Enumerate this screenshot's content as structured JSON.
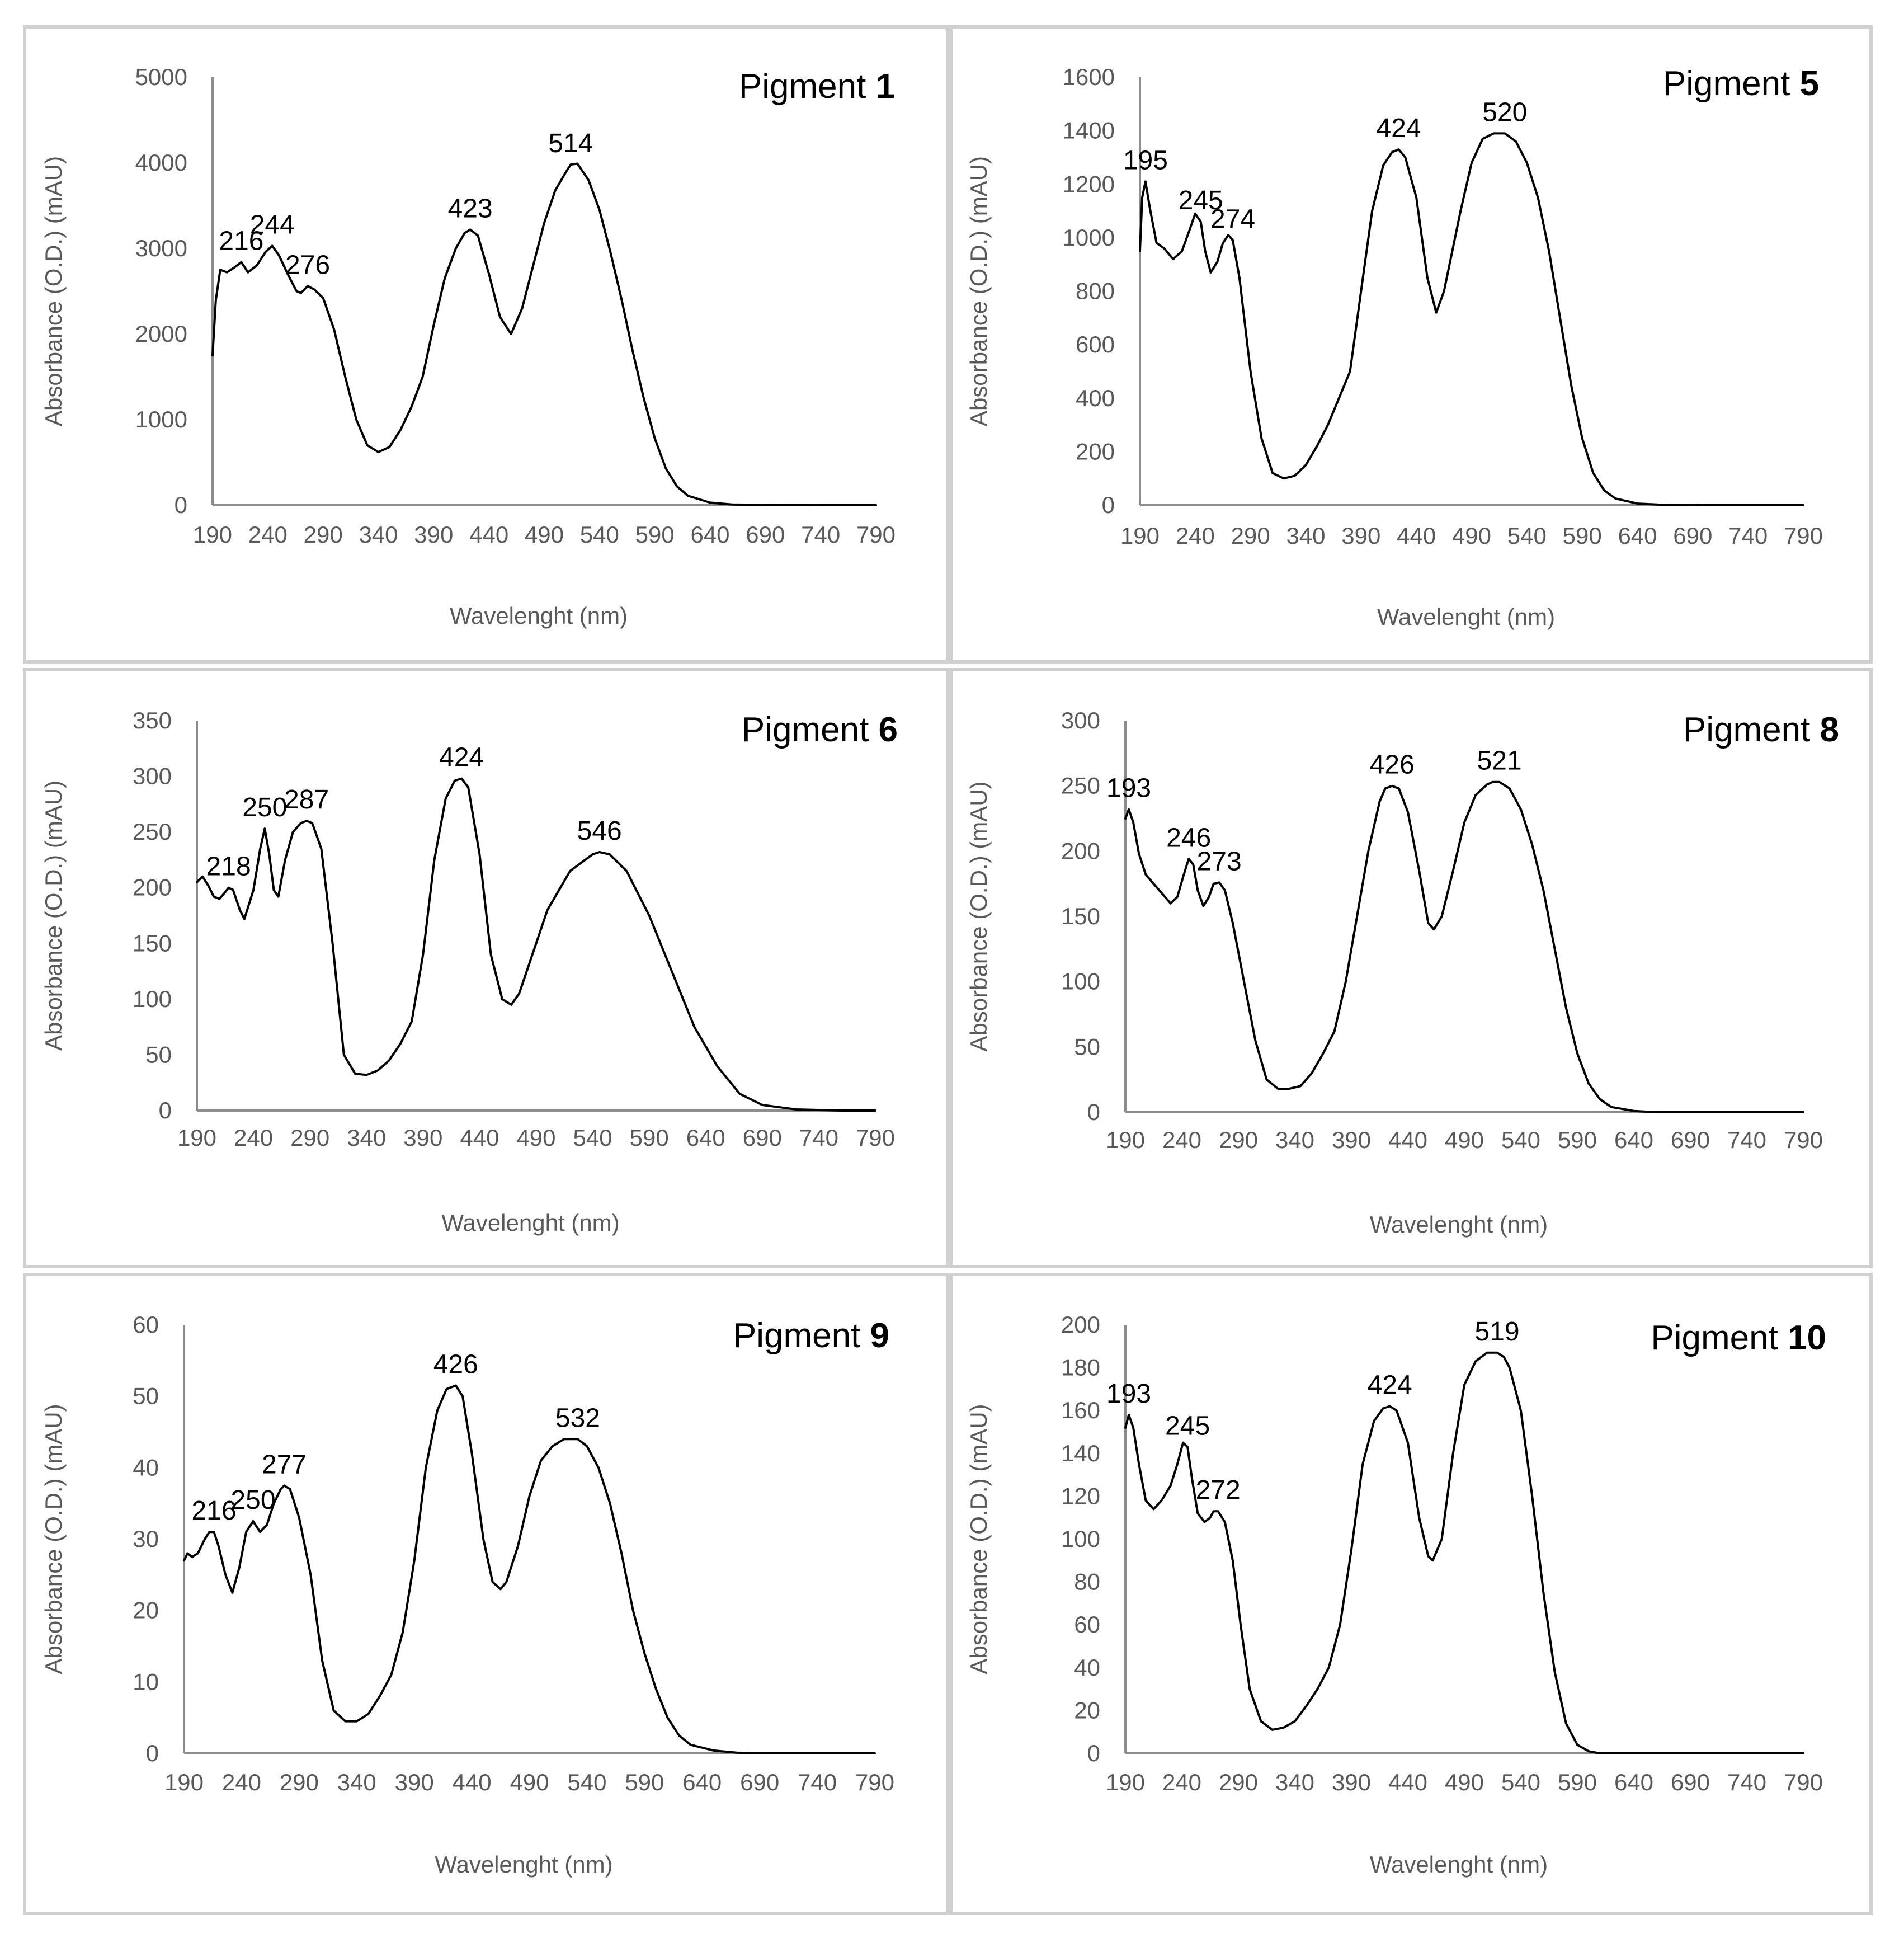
{
  "colors": {
    "line": "#000000",
    "axis": "#8c8c8c",
    "text": "#595959",
    "border": "#d0d0d0"
  },
  "chart_data": [
    {
      "type": "line",
      "title": "Pigment 1",
      "title_prefix": "Pigment ",
      "title_number": "1",
      "xlabel": "Wavelenght (nm)",
      "ylabel": "Absorbance (O.D.) (mAU)",
      "x_ticks": [
        190,
        240,
        290,
        340,
        390,
        440,
        490,
        540,
        590,
        640,
        690,
        740,
        790
      ],
      "y_ticks": [
        0,
        1000,
        2000,
        3000,
        4000,
        5000
      ],
      "xlim": [
        190,
        790
      ],
      "ylim": [
        0,
        5000
      ],
      "grid": false,
      "x": [
        190,
        193,
        197,
        203,
        210,
        216,
        222,
        230,
        238,
        244,
        250,
        258,
        266,
        270,
        276,
        282,
        290,
        300,
        310,
        320,
        330,
        340,
        350,
        360,
        370,
        380,
        390,
        400,
        410,
        418,
        423,
        430,
        440,
        450,
        460,
        470,
        480,
        490,
        500,
        510,
        514,
        520,
        530,
        540,
        550,
        560,
        570,
        580,
        590,
        600,
        610,
        620,
        640,
        660,
        700,
        740,
        790
      ],
      "y": [
        1750,
        2400,
        2750,
        2720,
        2780,
        2840,
        2720,
        2800,
        2960,
        3030,
        2920,
        2700,
        2500,
        2480,
        2560,
        2520,
        2420,
        2050,
        1500,
        1000,
        700,
        620,
        680,
        880,
        1150,
        1500,
        2100,
        2650,
        3000,
        3180,
        3220,
        3150,
        2700,
        2200,
        2000,
        2300,
        2800,
        3300,
        3680,
        3900,
        3980,
        3990,
        3800,
        3450,
        2950,
        2400,
        1800,
        1250,
        780,
        430,
        220,
        110,
        30,
        8,
        2,
        0,
        0
      ],
      "peaks": [
        {
          "x": 216,
          "label": "216"
        },
        {
          "x": 244,
          "label": "244"
        },
        {
          "x": 276,
          "label": "276"
        },
        {
          "x": 423,
          "label": "423"
        },
        {
          "x": 514,
          "label": "514"
        }
      ]
    },
    {
      "type": "line",
      "title": "Pigment 5",
      "title_prefix": "Pigment ",
      "title_number": "5",
      "xlabel": "Wavelenght (nm)",
      "ylabel": "Absorbance (O.D.) (mAU)",
      "x_ticks": [
        190,
        240,
        290,
        340,
        390,
        440,
        490,
        540,
        590,
        640,
        690,
        740,
        790
      ],
      "y_ticks": [
        0,
        200,
        400,
        600,
        800,
        1000,
        1200,
        1400,
        1600
      ],
      "xlim": [
        190,
        790
      ],
      "ylim": [
        0,
        1600
      ],
      "grid": false,
      "x": [
        190,
        192,
        195,
        199,
        205,
        212,
        220,
        228,
        235,
        240,
        245,
        249,
        254,
        260,
        265,
        270,
        274,
        280,
        290,
        300,
        310,
        320,
        330,
        340,
        350,
        360,
        370,
        380,
        390,
        400,
        410,
        418,
        424,
        430,
        440,
        450,
        458,
        465,
        470,
        480,
        490,
        500,
        510,
        520,
        530,
        540,
        550,
        560,
        570,
        580,
        590,
        600,
        610,
        620,
        640,
        660,
        700,
        740,
        790
      ],
      "y": [
        950,
        1150,
        1210,
        1110,
        980,
        960,
        920,
        950,
        1030,
        1090,
        1060,
        950,
        870,
        910,
        980,
        1010,
        990,
        850,
        500,
        250,
        120,
        100,
        110,
        150,
        220,
        300,
        400,
        500,
        800,
        1100,
        1270,
        1320,
        1330,
        1300,
        1150,
        850,
        720,
        800,
        900,
        1100,
        1280,
        1370,
        1390,
        1390,
        1360,
        1280,
        1150,
        950,
        700,
        450,
        250,
        120,
        55,
        25,
        6,
        2,
        0,
        0,
        0
      ],
      "peaks": [
        {
          "x": 195,
          "label": "195"
        },
        {
          "x": 245,
          "label": "245"
        },
        {
          "x": 274,
          "label": "274"
        },
        {
          "x": 424,
          "label": "424"
        },
        {
          "x": 520,
          "label": "520"
        }
      ]
    },
    {
      "type": "line",
      "title": "Pigment 6",
      "title_prefix": "Pigment ",
      "title_number": "6",
      "xlabel": "Wavelenght (nm)",
      "ylabel": "Absorbance (O.D.) (mAU)",
      "x_ticks": [
        190,
        240,
        290,
        340,
        390,
        440,
        490,
        540,
        590,
        640,
        690,
        740,
        790
      ],
      "y_ticks": [
        0,
        50,
        100,
        150,
        200,
        250,
        300,
        350
      ],
      "xlim": [
        190,
        790
      ],
      "ylim": [
        0,
        350
      ],
      "grid": false,
      "x": [
        190,
        195,
        200,
        205,
        210,
        215,
        218,
        222,
        228,
        232,
        240,
        246,
        250,
        254,
        258,
        262,
        268,
        275,
        282,
        287,
        292,
        300,
        310,
        320,
        330,
        340,
        350,
        360,
        370,
        380,
        390,
        400,
        410,
        418,
        424,
        430,
        440,
        450,
        460,
        468,
        475,
        485,
        500,
        520,
        540,
        546,
        555,
        570,
        590,
        610,
        630,
        650,
        670,
        690,
        720,
        760,
        790
      ],
      "y": [
        205,
        210,
        202,
        192,
        190,
        196,
        200,
        198,
        180,
        172,
        198,
        235,
        253,
        230,
        198,
        192,
        225,
        250,
        258,
        260,
        258,
        235,
        150,
        50,
        33,
        32,
        36,
        45,
        60,
        80,
        140,
        225,
        280,
        296,
        298,
        290,
        230,
        140,
        100,
        95,
        105,
        135,
        180,
        215,
        230,
        232,
        230,
        215,
        175,
        125,
        75,
        40,
        15,
        5,
        1,
        0,
        0
      ],
      "peaks": [
        {
          "x": 218,
          "label": "218"
        },
        {
          "x": 250,
          "label": "250"
        },
        {
          "x": 287,
          "label": "287"
        },
        {
          "x": 424,
          "label": "424"
        },
        {
          "x": 546,
          "label": "546"
        }
      ]
    },
    {
      "type": "line",
      "title": "Pigment 8",
      "title_prefix": "Pigment ",
      "title_number": "8",
      "xlabel": "Wavelenght (nm)",
      "ylabel": "Absorbance (O.D.) (mAU)",
      "x_ticks": [
        190,
        240,
        290,
        340,
        390,
        440,
        490,
        540,
        590,
        640,
        690,
        740,
        790
      ],
      "y_ticks": [
        0,
        50,
        100,
        150,
        200,
        250,
        300
      ],
      "xlim": [
        190,
        790
      ],
      "ylim": [
        0,
        300
      ],
      "grid": false,
      "x": [
        190,
        193,
        197,
        202,
        208,
        215,
        222,
        230,
        236,
        241,
        246,
        250,
        254,
        259,
        264,
        268,
        273,
        278,
        285,
        295,
        305,
        315,
        325,
        335,
        345,
        355,
        365,
        375,
        385,
        395,
        405,
        415,
        420,
        426,
        432,
        440,
        450,
        458,
        463,
        470,
        480,
        490,
        500,
        510,
        515,
        521,
        530,
        540,
        550,
        560,
        570,
        580,
        590,
        600,
        610,
        620,
        640,
        660,
        700,
        740,
        790
      ],
      "y": [
        225,
        232,
        222,
        198,
        182,
        175,
        168,
        160,
        165,
        180,
        194,
        190,
        170,
        158,
        165,
        175,
        176,
        170,
        145,
        100,
        55,
        25,
        18,
        18,
        20,
        30,
        45,
        62,
        100,
        150,
        200,
        238,
        248,
        250,
        248,
        230,
        185,
        145,
        140,
        150,
        185,
        222,
        243,
        251,
        253,
        253,
        248,
        232,
        205,
        170,
        125,
        80,
        45,
        22,
        10,
        4,
        1,
        0,
        0,
        0,
        0
      ],
      "peaks": [
        {
          "x": 193,
          "label": "193"
        },
        {
          "x": 246,
          "label": "246"
        },
        {
          "x": 273,
          "label": "273"
        },
        {
          "x": 426,
          "label": "426"
        },
        {
          "x": 521,
          "label": "521"
        }
      ]
    },
    {
      "type": "line",
      "title": "Pigment 9",
      "title_prefix": "Pigment ",
      "title_number": "9",
      "xlabel": "Wavelenght (nm)",
      "ylabel": "Absorbance (O.D.) (mAU)",
      "x_ticks": [
        190,
        240,
        290,
        340,
        390,
        440,
        490,
        540,
        590,
        640,
        690,
        740,
        790
      ],
      "y_ticks": [
        0,
        10,
        20,
        30,
        40,
        50,
        60
      ],
      "xlim": [
        190,
        790
      ],
      "ylim": [
        0,
        60
      ],
      "grid": false,
      "x": [
        190,
        193,
        197,
        202,
        208,
        212,
        216,
        220,
        226,
        232,
        238,
        244,
        250,
        256,
        262,
        268,
        274,
        277,
        282,
        290,
        300,
        310,
        320,
        330,
        340,
        350,
        360,
        370,
        380,
        390,
        400,
        410,
        418,
        426,
        432,
        440,
        450,
        458,
        465,
        470,
        480,
        490,
        500,
        510,
        520,
        532,
        540,
        550,
        560,
        570,
        580,
        590,
        600,
        610,
        620,
        630,
        650,
        670,
        690,
        720,
        760,
        790
      ],
      "y": [
        27,
        28,
        27.5,
        28,
        30,
        31,
        31,
        29,
        25,
        22.5,
        26,
        31,
        32.5,
        31,
        32,
        35,
        37,
        37.5,
        37,
        33,
        25,
        13,
        6,
        4.5,
        4.5,
        5.5,
        8,
        11,
        17,
        27,
        40,
        48,
        51,
        51.5,
        50,
        42,
        30,
        24,
        23,
        24,
        29,
        36,
        41,
        43,
        44,
        44,
        43,
        40,
        35,
        28,
        20,
        14,
        9,
        5,
        2.5,
        1.2,
        0.4,
        0.1,
        0,
        0,
        0,
        0
      ],
      "peaks": [
        {
          "x": 216,
          "label": "216"
        },
        {
          "x": 250,
          "label": "250"
        },
        {
          "x": 277,
          "label": "277"
        },
        {
          "x": 426,
          "label": "426"
        },
        {
          "x": 532,
          "label": "532"
        }
      ]
    },
    {
      "type": "line",
      "title": "Pigment 10",
      "title_prefix": "Pigment ",
      "title_number": "10",
      "xlabel": "Wavelenght (nm)",
      "ylabel": "Absorbance (O.D.) (mAU)",
      "x_ticks": [
        190,
        240,
        290,
        340,
        390,
        440,
        490,
        540,
        590,
        640,
        690,
        740,
        790
      ],
      "y_ticks": [
        0,
        20,
        40,
        60,
        80,
        100,
        120,
        140,
        160,
        180,
        200
      ],
      "xlim": [
        190,
        790
      ],
      "ylim": [
        0,
        200
      ],
      "grid": false,
      "x": [
        190,
        193,
        197,
        202,
        208,
        215,
        222,
        230,
        236,
        241,
        245,
        249,
        254,
        260,
        265,
        268,
        272,
        278,
        285,
        292,
        300,
        310,
        320,
        330,
        340,
        350,
        360,
        370,
        380,
        390,
        400,
        410,
        418,
        424,
        430,
        440,
        450,
        458,
        462,
        470,
        480,
        490,
        500,
        510,
        519,
        525,
        530,
        540,
        550,
        560,
        570,
        580,
        590,
        600,
        610,
        620,
        640,
        660,
        700,
        740,
        790
      ],
      "y": [
        152,
        158,
        152,
        135,
        118,
        114,
        118,
        125,
        135,
        145,
        143,
        128,
        112,
        108,
        110,
        113,
        113,
        108,
        90,
        60,
        30,
        15,
        11,
        12,
        15,
        22,
        30,
        40,
        60,
        95,
        135,
        155,
        161,
        162,
        160,
        145,
        110,
        92,
        90,
        100,
        140,
        172,
        183,
        187,
        187,
        185,
        180,
        160,
        120,
        75,
        38,
        14,
        4,
        1,
        0,
        0,
        0,
        0,
        0,
        0,
        0
      ],
      "peaks": [
        {
          "x": 193,
          "label": "193"
        },
        {
          "x": 245,
          "label": "245"
        },
        {
          "x": 272,
          "label": "272"
        },
        {
          "x": 424,
          "label": "424"
        },
        {
          "x": 519,
          "label": "519"
        }
      ]
    }
  ]
}
